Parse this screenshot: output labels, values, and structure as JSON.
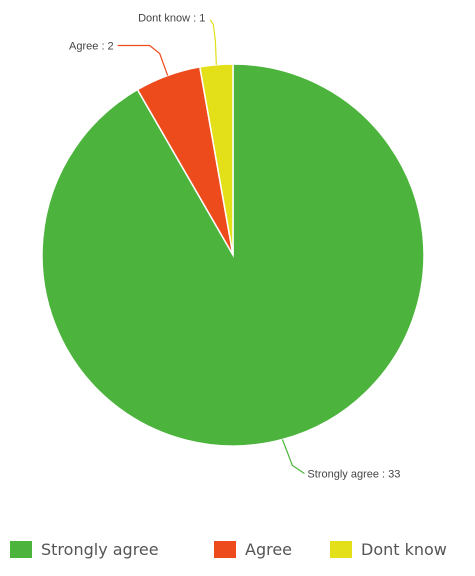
{
  "chart_data": {
    "type": "pie",
    "title": "",
    "slices": [
      {
        "label": "Strongly agree",
        "value": 33,
        "color": "#4cb43c",
        "data_label": "Strongly agree : 33"
      },
      {
        "label": "Agree",
        "value": 2,
        "color": "#ee4b1d",
        "data_label": "Agree : 2"
      },
      {
        "label": "Dont know",
        "value": 1,
        "color": "#e3e019",
        "data_label": "Dont know : 1"
      }
    ],
    "legend": {
      "position": "bottom"
    }
  }
}
